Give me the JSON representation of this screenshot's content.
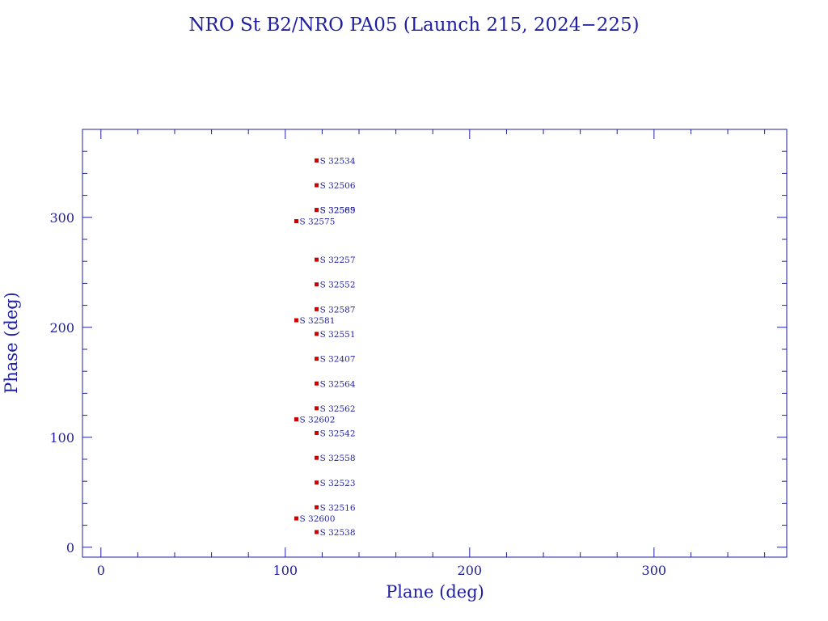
{
  "chart_data": {
    "type": "scatter",
    "title": "NRO St B2/NRO PA05 (Launch 215, 2024−225)",
    "xlabel": "Plane (deg)",
    "ylabel": "Phase (deg)",
    "xlim": [
      -10,
      372
    ],
    "ylim": [
      -9,
      380
    ],
    "xticks": [
      0,
      100,
      200,
      300
    ],
    "yticks": [
      0,
      100,
      200,
      300
    ],
    "grid": false,
    "colors": {
      "axis": "#1f1fa0",
      "marker": "#cc0000",
      "text": "#1f1fa0"
    },
    "points": [
      {
        "x": 117,
        "y": 351.7,
        "label": "S 32534"
      },
      {
        "x": 117,
        "y": 329.2,
        "label": "S 32506"
      },
      {
        "x": 117,
        "y": 306.7,
        "label": "S 32569"
      },
      {
        "x": 117,
        "y": 306.7,
        "label": "S 32585"
      },
      {
        "x": 106,
        "y": 296.5,
        "label": "S 32575"
      },
      {
        "x": 117,
        "y": 261.5,
        "label": "S 32257"
      },
      {
        "x": 117,
        "y": 239.0,
        "label": "S 32552"
      },
      {
        "x": 117,
        "y": 216.5,
        "label": "S 32587"
      },
      {
        "x": 106,
        "y": 206.4,
        "label": "S 32581"
      },
      {
        "x": 117,
        "y": 194.0,
        "label": "S 32551"
      },
      {
        "x": 117,
        "y": 171.4,
        "label": "S 32407"
      },
      {
        "x": 117,
        "y": 148.9,
        "label": "S 32564"
      },
      {
        "x": 117,
        "y": 126.4,
        "label": "S 32562"
      },
      {
        "x": 106,
        "y": 116.3,
        "label": "S 32602"
      },
      {
        "x": 117,
        "y": 103.9,
        "label": "S 32542"
      },
      {
        "x": 117,
        "y": 81.3,
        "label": "S 32558"
      },
      {
        "x": 117,
        "y": 58.8,
        "label": "S 32523"
      },
      {
        "x": 117,
        "y": 36.3,
        "label": "S 32516"
      },
      {
        "x": 106,
        "y": 26.2,
        "label": "S 32600"
      },
      {
        "x": 117,
        "y": 13.8,
        "label": "S 32538"
      }
    ]
  }
}
